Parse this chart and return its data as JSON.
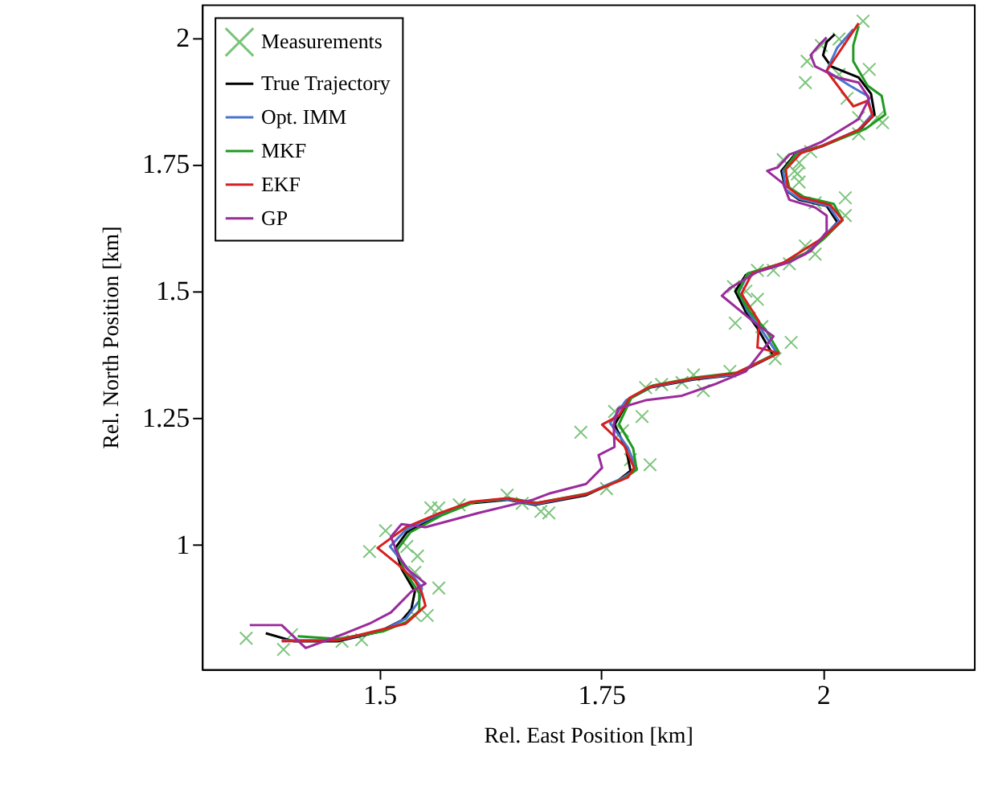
{
  "chart_data": {
    "type": "line",
    "xlabel": "Rel. East Position [km]",
    "ylabel": "Rel. North Position [km]",
    "xlim": [
      1.3,
      2.17
    ],
    "ylim": [
      0.755,
      2.065
    ],
    "xticks": [
      1.5,
      1.75,
      2
    ],
    "yticks": [
      1,
      1.25,
      1.5,
      1.75,
      2
    ],
    "grid": false,
    "legend": "top left",
    "line_style": "solid",
    "series": [
      {
        "name": "Measurements",
        "type": "scatter",
        "marker": "cross",
        "color": "#7cc47c",
        "x": [
          1.35,
          1.392,
          1.401,
          1.458,
          1.48,
          1.489,
          1.507,
          1.531,
          1.543,
          1.54,
          1.567,
          1.554,
          1.54,
          1.558,
          1.567,
          1.59,
          1.644,
          1.661,
          1.691,
          1.682,
          1.727,
          1.774,
          1.796,
          1.805,
          1.756,
          1.765,
          1.783,
          1.8,
          1.818,
          1.841,
          1.865,
          1.895,
          1.854,
          1.964,
          1.946,
          1.931,
          1.901,
          1.917,
          1.926,
          1.913,
          1.899,
          1.926,
          1.944,
          1.962,
          1.98,
          1.991,
          2.025,
          2.025,
          1.991,
          1.973,
          1.968,
          1.973,
          1.955,
          2.045,
          1.998,
          2.018,
          1.982,
          1.98,
          2.018,
          2.052,
          2.027,
          2.04,
          2.067,
          2.061,
          2.04,
          1.986,
          1.971
        ],
        "values": [
          0.816,
          0.794,
          0.823,
          0.81,
          0.813,
          0.987,
          1.028,
          0.997,
          0.978,
          0.946,
          0.915,
          0.861,
          0.861,
          1.073,
          1.073,
          1.079,
          1.098,
          1.082,
          1.063,
          1.066,
          1.222,
          1.225,
          1.253,
          1.158,
          1.111,
          1.263,
          1.168,
          1.31,
          1.316,
          1.32,
          1.304,
          1.342,
          1.335,
          1.399,
          1.367,
          1.43,
          1.437,
          1.468,
          1.484,
          1.5,
          1.509,
          1.541,
          1.541,
          1.554,
          1.589,
          1.573,
          1.684,
          1.649,
          1.674,
          1.715,
          1.737,
          1.753,
          1.759,
          2.032,
          1.984,
          1.997,
          1.953,
          1.911,
          1.927,
          1.937,
          1.88,
          1.842,
          1.832,
          1.842,
          1.81,
          1.775,
          1.731
        ]
      },
      {
        "name": "True Trajectory",
        "color": "#000000",
        "x": [
          1.372,
          1.404,
          1.453,
          1.5,
          1.525,
          1.536,
          1.54,
          1.525,
          1.518,
          1.531,
          1.567,
          1.603,
          1.644,
          1.675,
          1.733,
          1.769,
          1.783,
          1.778,
          1.765,
          1.782,
          1.805,
          1.854,
          1.901,
          1.944,
          1.926,
          1.913,
          1.901,
          1.913,
          1.955,
          1.98,
          1.998,
          2.016,
          2.004,
          1.973,
          1.958,
          1.953,
          1.968,
          1.998,
          2.04,
          2.058,
          2.054,
          2.04,
          2.009,
          2.0,
          2.004,
          2.013
        ],
        "values": [
          0.826,
          0.81,
          0.81,
          0.829,
          0.851,
          0.873,
          0.908,
          0.953,
          0.994,
          1.025,
          1.057,
          1.082,
          1.089,
          1.079,
          1.098,
          1.127,
          1.146,
          1.19,
          1.237,
          1.288,
          1.31,
          1.326,
          1.335,
          1.373,
          1.427,
          1.459,
          1.5,
          1.532,
          1.554,
          1.573,
          1.601,
          1.636,
          1.668,
          1.68,
          1.699,
          1.737,
          1.769,
          1.785,
          1.816,
          1.848,
          1.889,
          1.921,
          1.943,
          1.965,
          1.991,
          2.006
        ]
      },
      {
        "name": "Opt. IMM",
        "color": "#4a74d0",
        "x": [
          1.39,
          1.453,
          1.505,
          1.53,
          1.545,
          1.548,
          1.53,
          1.512,
          1.53,
          1.567,
          1.603,
          1.644,
          1.675,
          1.733,
          1.772,
          1.79,
          1.78,
          1.76,
          1.778,
          1.805,
          1.854,
          1.901,
          1.948,
          1.93,
          1.915,
          1.905,
          1.915,
          1.955,
          1.98,
          1.998,
          2.018,
          2.006,
          1.973,
          1.958,
          1.955,
          1.97,
          1.998,
          2.04,
          2.055,
          2.05,
          2.03,
          2.004,
          2.016,
          2.034
        ],
        "values": [
          0.812,
          0.812,
          0.832,
          0.855,
          0.89,
          0.915,
          0.958,
          0.997,
          1.03,
          1.06,
          1.084,
          1.09,
          1.08,
          1.1,
          1.13,
          1.15,
          1.192,
          1.24,
          1.285,
          1.311,
          1.327,
          1.336,
          1.378,
          1.425,
          1.46,
          1.498,
          1.533,
          1.555,
          1.574,
          1.603,
          1.638,
          1.668,
          1.682,
          1.7,
          1.737,
          1.77,
          1.786,
          1.818,
          1.848,
          1.885,
          1.905,
          1.934,
          1.98,
          2.016
        ]
      },
      {
        "name": "MKF",
        "color": "#1f9a1f",
        "x": [
          1.408,
          1.453,
          1.505,
          1.53,
          1.545,
          1.545,
          1.528,
          1.52,
          1.535,
          1.57,
          1.606,
          1.646,
          1.678,
          1.736,
          1.775,
          1.79,
          1.786,
          1.77,
          1.784,
          1.808,
          1.856,
          1.904,
          1.95,
          1.935,
          1.918,
          1.904,
          1.915,
          1.957,
          1.983,
          2.002,
          2.022,
          2.012,
          1.978,
          1.962,
          1.957,
          1.97,
          2.002,
          2.048,
          2.07,
          2.066,
          2.05,
          2.034,
          2.034,
          2.04
        ],
        "values": [
          0.82,
          0.815,
          0.83,
          0.848,
          0.87,
          0.905,
          0.95,
          0.99,
          1.025,
          1.058,
          1.084,
          1.092,
          1.083,
          1.102,
          1.13,
          1.148,
          1.19,
          1.238,
          1.29,
          1.314,
          1.33,
          1.34,
          1.38,
          1.425,
          1.458,
          1.498,
          1.535,
          1.557,
          1.577,
          1.605,
          1.64,
          1.672,
          1.686,
          1.704,
          1.74,
          1.772,
          1.788,
          1.82,
          1.848,
          1.885,
          1.905,
          1.953,
          1.984,
          2.022
        ]
      },
      {
        "name": "EKF",
        "color": "#d81e1e",
        "x": [
          1.39,
          1.453,
          1.53,
          1.552,
          1.548,
          1.54,
          1.522,
          1.498,
          1.53,
          1.567,
          1.603,
          1.644,
          1.675,
          1.733,
          1.78,
          1.787,
          1.776,
          1.751,
          1.77,
          1.782,
          1.805,
          1.854,
          1.901,
          1.95,
          1.926,
          1.928,
          1.917,
          1.908,
          1.92,
          1.955,
          1.998,
          2.022,
          2.008,
          1.975,
          1.96,
          1.958,
          1.975,
          2.0,
          2.04,
          2.056,
          2.05,
          2.034,
          2.004,
          2.04
        ],
        "values": [
          0.81,
          0.812,
          0.845,
          0.88,
          0.905,
          0.93,
          0.96,
          0.994,
          1.035,
          1.062,
          1.085,
          1.092,
          1.082,
          1.1,
          1.133,
          1.152,
          1.195,
          1.237,
          1.255,
          1.29,
          1.312,
          1.328,
          1.338,
          1.378,
          1.389,
          1.44,
          1.47,
          1.495,
          1.535,
          1.556,
          1.603,
          1.64,
          1.67,
          1.685,
          1.705,
          1.74,
          1.772,
          1.787,
          1.818,
          1.845,
          1.875,
          1.864,
          1.934,
          2.028
        ]
      },
      {
        "name": "GP",
        "color": "#9b2a9b",
        "x": [
          1.354,
          1.39,
          1.417,
          1.462,
          1.489,
          1.513,
          1.536,
          1.552,
          1.531,
          1.521,
          1.513,
          1.525,
          1.552,
          1.612,
          1.673,
          1.691,
          1.733,
          1.751,
          1.747,
          1.765,
          1.764,
          1.769,
          1.8,
          1.841,
          1.877,
          1.913,
          1.944,
          1.925,
          1.886,
          1.895,
          1.926,
          1.962,
          1.986,
          2.004,
          2.004,
          1.991,
          1.962,
          1.955,
          1.937,
          1.949,
          1.962,
          1.986,
          1.998,
          2.04,
          2.052,
          2.04,
          2.016,
          1.991,
          1.986,
          1.995,
          2.004
        ],
        "values": [
          0.842,
          0.842,
          0.797,
          0.826,
          0.845,
          0.867,
          0.908,
          0.924,
          0.953,
          0.981,
          1.016,
          1.041,
          1.035,
          1.063,
          1.089,
          1.101,
          1.12,
          1.152,
          1.177,
          1.193,
          1.237,
          1.269,
          1.285,
          1.294,
          1.316,
          1.342,
          1.411,
          1.435,
          1.491,
          1.506,
          1.538,
          1.557,
          1.579,
          1.617,
          1.649,
          1.665,
          1.68,
          1.712,
          1.737,
          1.744,
          1.769,
          1.785,
          1.794,
          1.839,
          1.88,
          1.911,
          1.921,
          1.943,
          1.965,
          1.984,
          2.0
        ]
      }
    ]
  }
}
